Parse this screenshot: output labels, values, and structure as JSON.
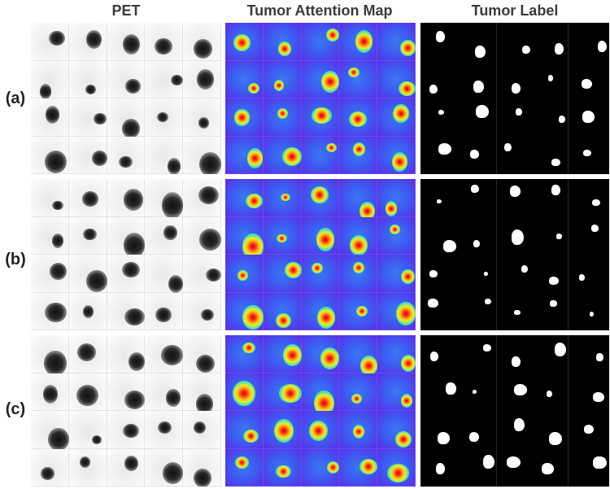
{
  "columns": {
    "pet": "PET",
    "map": "Tumor Attention Map",
    "label": "Tumor Label"
  },
  "rows": [
    {
      "label": "(a)"
    },
    {
      "label": "(b)"
    },
    {
      "label": "(c)"
    }
  ],
  "colors": {
    "map_background": "#5a2fe6",
    "heat_core": "#ff3a10",
    "label_background": "#000000",
    "label_foreground": "#ffffff"
  }
}
